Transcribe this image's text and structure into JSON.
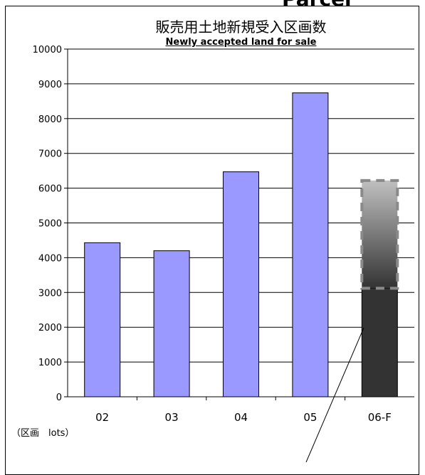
{
  "header_cutoff": "Parcel",
  "chart_data": {
    "type": "bar",
    "title": "販売用土地新規受入区画数",
    "subtitle": "Newly accepted land for sale",
    "unit_label": "（区画　lots）",
    "categories": [
      "02",
      "03",
      "04",
      "05",
      "06-F"
    ],
    "values": [
      4430,
      4200,
      6470,
      8740,
      3120
    ],
    "forecast_range": {
      "category": "06-F",
      "from": 3120,
      "to": 6220
    },
    "ylim": [
      0,
      10000
    ],
    "yticks": [
      0,
      1000,
      2000,
      3000,
      4000,
      5000,
      6000,
      7000,
      8000,
      9000,
      10000
    ],
    "ytick_labels": [
      "0",
      "1000",
      "2000",
      "3000",
      "4000",
      "5000",
      "6000",
      "7000",
      "8000",
      "9000",
      "10000"
    ],
    "grid": true,
    "legend": "none",
    "colors": {
      "bar": "#9999ff",
      "forecast_bar": "#333333",
      "forecast_range_top": "#c0c0c0",
      "forecast_range_bottom": "#333333",
      "grid": "#000000"
    }
  }
}
